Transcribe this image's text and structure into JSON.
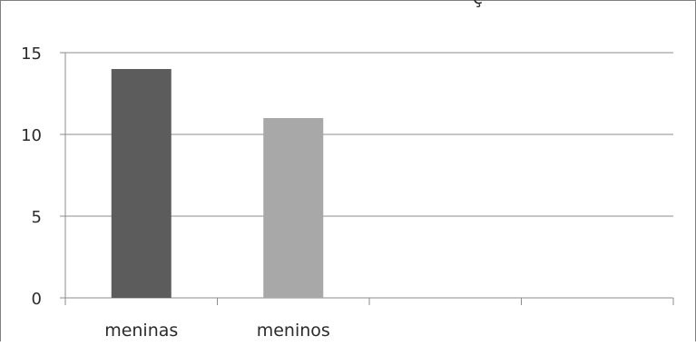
{
  "chart_data": {
    "type": "bar",
    "title": "ç",
    "categories": [
      "meninas",
      "meninos",
      "",
      ""
    ],
    "values": [
      14,
      11,
      null,
      null
    ],
    "colors": [
      "#5c5c5c",
      "#a8a8a8"
    ],
    "ylim": [
      0,
      15
    ],
    "yticks": [
      "0",
      "5",
      "10",
      "15"
    ],
    "grid": true,
    "legend": "none",
    "xlabel": "",
    "ylabel": ""
  }
}
